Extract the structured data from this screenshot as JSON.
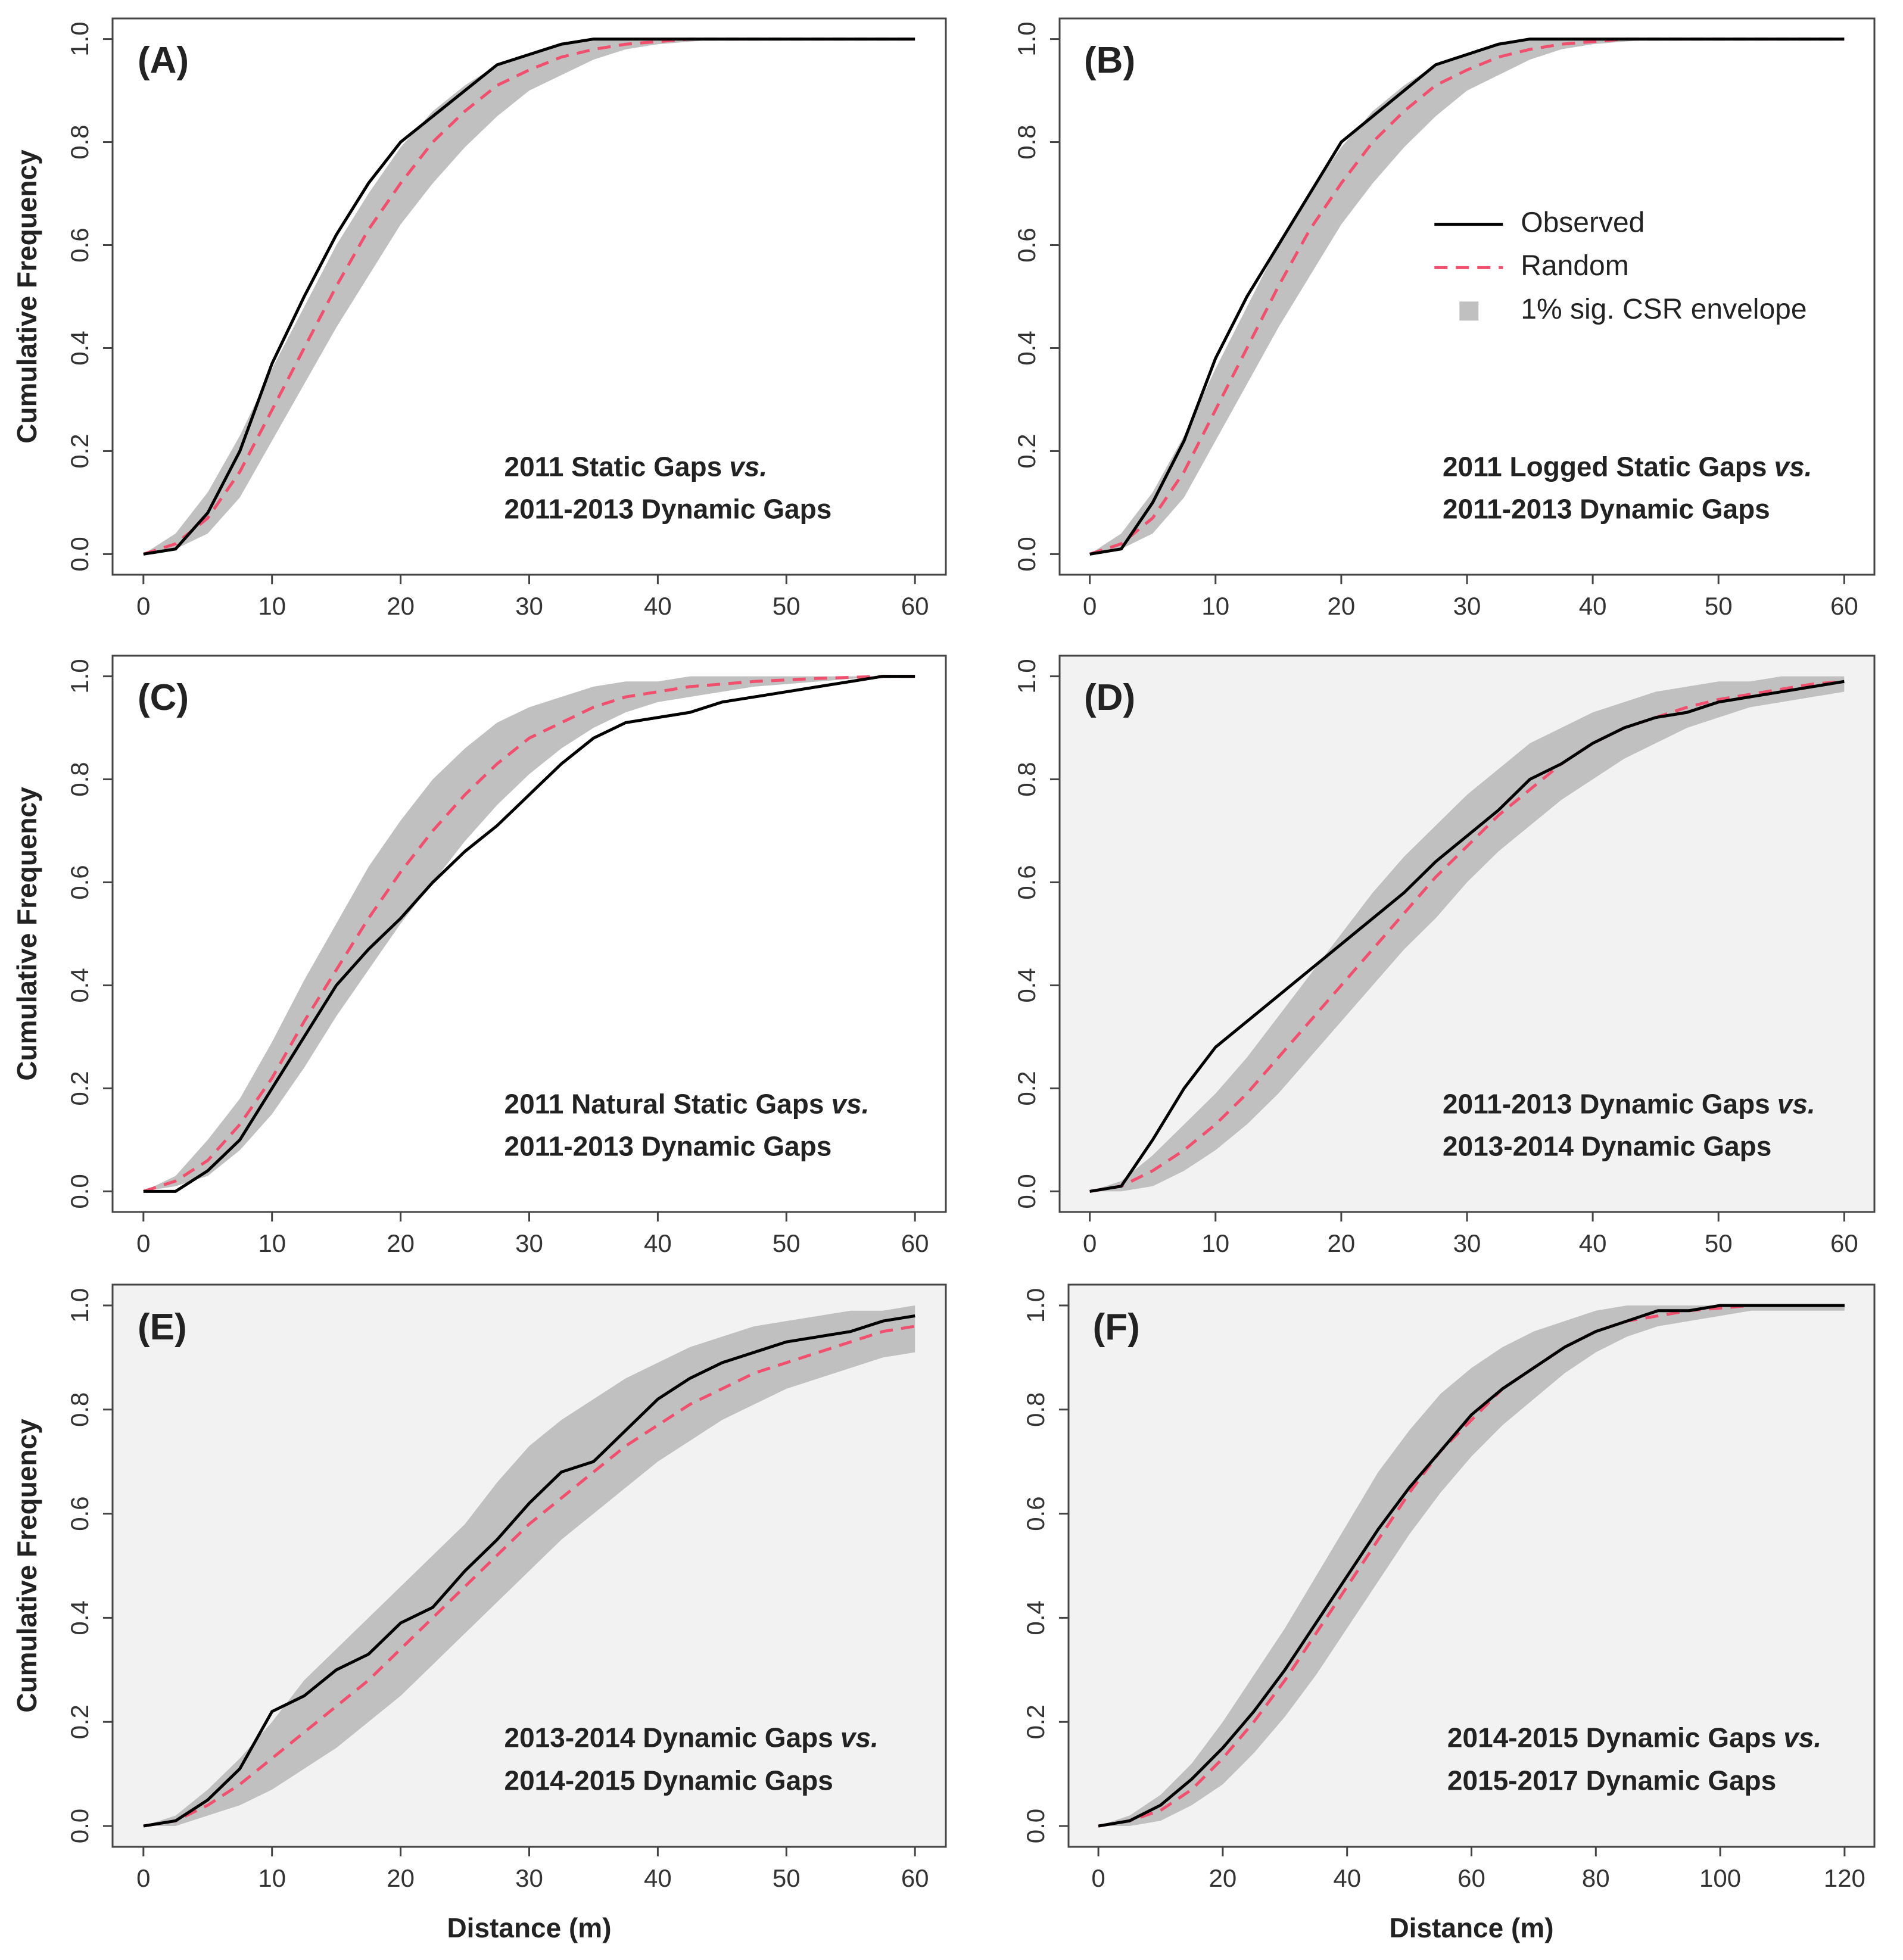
{
  "chart_data": [
    {
      "type": "line",
      "label": "(A)",
      "background": "#ffffff",
      "annotation": [
        [
          "2011 Static Gaps",
          "vs."
        ],
        [
          "2011-2013 Dynamic Gaps"
        ]
      ],
      "ylabel": "Cumulative Frequency",
      "x": [
        0,
        2.5,
        5,
        7.5,
        10,
        12.5,
        15,
        17.5,
        20,
        22.5,
        25,
        27.5,
        30,
        32.5,
        35,
        37.5,
        40,
        42.5,
        45,
        47.5,
        50,
        52.5,
        55,
        57.5,
        60
      ],
      "series": [
        {
          "color": "#000000",
          "style": "solid",
          "values": [
            0,
            0.01,
            0.08,
            0.2,
            0.37,
            0.5,
            0.62,
            0.72,
            0.8,
            0.85,
            0.9,
            0.95,
            0.97,
            0.99,
            1,
            1,
            1,
            1,
            1,
            1,
            1,
            1,
            1,
            1,
            1
          ]
        },
        {
          "color": "#f0506e",
          "style": "dashed",
          "values": [
            0,
            0.02,
            0.07,
            0.16,
            0.28,
            0.4,
            0.52,
            0.63,
            0.72,
            0.8,
            0.86,
            0.91,
            0.94,
            0.965,
            0.98,
            0.99,
            0.995,
            1,
            1,
            1,
            1,
            1,
            1,
            1,
            1
          ]
        },
        {
          "color": "#c0c0c0",
          "lower": [
            0,
            0.01,
            0.04,
            0.11,
            0.22,
            0.33,
            0.44,
            0.54,
            0.64,
            0.72,
            0.79,
            0.85,
            0.9,
            0.93,
            0.96,
            0.98,
            0.99,
            0.995,
            1,
            1,
            1,
            1,
            1,
            1,
            1
          ],
          "upper": [
            0,
            0.04,
            0.12,
            0.23,
            0.36,
            0.48,
            0.6,
            0.7,
            0.79,
            0.86,
            0.91,
            0.95,
            0.97,
            0.99,
            1,
            1,
            1,
            1,
            1,
            1,
            1,
            1,
            1,
            1,
            1
          ]
        }
      ],
      "xlim": [
        0,
        60
      ],
      "ylim": [
        0,
        1
      ],
      "xticks": [
        0,
        10,
        20,
        30,
        40,
        50,
        60
      ],
      "yticks": [
        {
          "value": 0,
          "label": "0.0"
        },
        0.2,
        0.4,
        0.6,
        0.8,
        {
          "value": 1,
          "label": "1.0"
        }
      ]
    },
    {
      "type": "line",
      "label": "(B)",
      "background": "#ffffff",
      "legend": "upper right",
      "annotation": [
        [
          "2011 Logged Static Gaps",
          "vs."
        ],
        [
          "2011-2013 Dynamic Gaps"
        ]
      ],
      "x": [
        0,
        2.5,
        5,
        7.5,
        10,
        12.5,
        15,
        17.5,
        20,
        22.5,
        25,
        27.5,
        30,
        32.5,
        35,
        37.5,
        40,
        42.5,
        45,
        47.5,
        50,
        52.5,
        55,
        57.5,
        60
      ],
      "series": [
        {
          "name": "Observed",
          "color": "#000000",
          "style": "solid",
          "values": [
            0,
            0.01,
            0.1,
            0.22,
            0.38,
            0.5,
            0.6,
            0.7,
            0.8,
            0.85,
            0.9,
            0.95,
            0.97,
            0.99,
            1,
            1,
            1,
            1,
            1,
            1,
            1,
            1,
            1,
            1,
            1
          ]
        },
        {
          "name": "Random",
          "color": "#f0506e",
          "style": "dashed",
          "values": [
            0,
            0.02,
            0.07,
            0.16,
            0.28,
            0.4,
            0.52,
            0.63,
            0.72,
            0.8,
            0.86,
            0.91,
            0.94,
            0.965,
            0.98,
            0.99,
            0.995,
            1,
            1,
            1,
            1,
            1,
            1,
            1,
            1
          ]
        },
        {
          "name": "1% sig. CSR envelope",
          "color": "#c0c0c0",
          "lower": [
            0,
            0.01,
            0.04,
            0.11,
            0.22,
            0.33,
            0.44,
            0.54,
            0.64,
            0.72,
            0.79,
            0.85,
            0.9,
            0.93,
            0.96,
            0.98,
            0.99,
            0.995,
            1,
            1,
            1,
            1,
            1,
            1,
            1
          ],
          "upper": [
            0,
            0.04,
            0.12,
            0.23,
            0.36,
            0.48,
            0.6,
            0.7,
            0.79,
            0.86,
            0.91,
            0.95,
            0.97,
            0.99,
            1,
            1,
            1,
            1,
            1,
            1,
            1,
            1,
            1,
            1,
            1
          ]
        }
      ],
      "xlim": [
        0,
        60
      ],
      "ylim": [
        0,
        1
      ],
      "xticks": [
        0,
        10,
        20,
        30,
        40,
        50,
        60
      ],
      "yticks": [
        {
          "value": 0,
          "label": "0.0"
        },
        0.2,
        0.4,
        0.6,
        0.8,
        {
          "value": 1,
          "label": "1.0"
        }
      ]
    },
    {
      "type": "line",
      "label": "(C)",
      "background": "#ffffff",
      "annotation": [
        [
          "2011 Natural Static Gaps",
          "vs."
        ],
        [
          "2011-2013 Dynamic Gaps"
        ]
      ],
      "ylabel": "Cumulative Frequency",
      "x": [
        0,
        2.5,
        5,
        7.5,
        10,
        12.5,
        15,
        17.5,
        20,
        22.5,
        25,
        27.5,
        30,
        32.5,
        35,
        37.5,
        40,
        42.5,
        45,
        47.5,
        50,
        52.5,
        55,
        57.5,
        60
      ],
      "series": [
        {
          "color": "#000000",
          "style": "solid",
          "values": [
            0,
            0,
            0.04,
            0.1,
            0.2,
            0.3,
            0.4,
            0.47,
            0.53,
            0.6,
            0.66,
            0.71,
            0.77,
            0.83,
            0.88,
            0.91,
            0.92,
            0.93,
            0.95,
            0.96,
            0.97,
            0.98,
            0.99,
            1,
            1
          ]
        },
        {
          "color": "#f0506e",
          "style": "dashed",
          "values": [
            0,
            0.02,
            0.06,
            0.13,
            0.22,
            0.33,
            0.43,
            0.53,
            0.62,
            0.7,
            0.77,
            0.83,
            0.88,
            0.91,
            0.94,
            0.96,
            0.97,
            0.98,
            0.985,
            0.99,
            0.993,
            0.996,
            0.998,
            1,
            1
          ]
        },
        {
          "color": "#c0c0c0",
          "lower": [
            0,
            0.01,
            0.03,
            0.08,
            0.15,
            0.24,
            0.34,
            0.43,
            0.52,
            0.6,
            0.68,
            0.75,
            0.81,
            0.86,
            0.9,
            0.93,
            0.95,
            0.96,
            0.97,
            0.98,
            0.985,
            0.99,
            0.995,
            1,
            1
          ],
          "upper": [
            0,
            0.03,
            0.1,
            0.18,
            0.29,
            0.41,
            0.52,
            0.63,
            0.72,
            0.8,
            0.86,
            0.91,
            0.94,
            0.96,
            0.98,
            0.99,
            0.99,
            1,
            1,
            1,
            1,
            1,
            1,
            1,
            1
          ]
        }
      ],
      "xlim": [
        0,
        60
      ],
      "ylim": [
        0,
        1
      ],
      "xticks": [
        0,
        10,
        20,
        30,
        40,
        50,
        60
      ],
      "yticks": [
        {
          "value": 0,
          "label": "0.0"
        },
        0.2,
        0.4,
        0.6,
        0.8,
        {
          "value": 1,
          "label": "1.0"
        }
      ]
    },
    {
      "type": "line",
      "label": "(D)",
      "background": "#f2f2f2",
      "annotation": [
        [
          "2011-2013 Dynamic Gaps",
          "vs."
        ],
        [
          "2013-2014 Dynamic Gaps"
        ]
      ],
      "x": [
        0,
        2.5,
        5,
        7.5,
        10,
        12.5,
        15,
        17.5,
        20,
        22.5,
        25,
        27.5,
        30,
        32.5,
        35,
        37.5,
        40,
        42.5,
        45,
        47.5,
        50,
        52.5,
        55,
        57.5,
        60
      ],
      "series": [
        {
          "color": "#000000",
          "style": "solid",
          "values": [
            0,
            0.01,
            0.1,
            0.2,
            0.28,
            0.33,
            0.38,
            0.43,
            0.48,
            0.53,
            0.58,
            0.64,
            0.69,
            0.74,
            0.8,
            0.83,
            0.87,
            0.9,
            0.92,
            0.93,
            0.95,
            0.96,
            0.97,
            0.98,
            0.99
          ]
        },
        {
          "color": "#f0506e",
          "style": "dashed",
          "values": [
            0,
            0.01,
            0.04,
            0.08,
            0.13,
            0.19,
            0.26,
            0.33,
            0.4,
            0.47,
            0.54,
            0.61,
            0.67,
            0.73,
            0.78,
            0.83,
            0.87,
            0.9,
            0.92,
            0.94,
            0.955,
            0.965,
            0.975,
            0.985,
            0.99
          ]
        },
        {
          "color": "#c0c0c0",
          "lower": [
            0,
            0,
            0.01,
            0.04,
            0.08,
            0.13,
            0.19,
            0.26,
            0.33,
            0.4,
            0.47,
            0.53,
            0.6,
            0.66,
            0.71,
            0.76,
            0.8,
            0.84,
            0.87,
            0.9,
            0.92,
            0.94,
            0.95,
            0.96,
            0.97
          ],
          "upper": [
            0,
            0.02,
            0.07,
            0.13,
            0.19,
            0.26,
            0.34,
            0.42,
            0.5,
            0.58,
            0.65,
            0.71,
            0.77,
            0.82,
            0.87,
            0.9,
            0.93,
            0.95,
            0.97,
            0.98,
            0.99,
            0.99,
            1,
            1,
            1
          ]
        }
      ],
      "xlim": [
        0,
        60
      ],
      "ylim": [
        0,
        1
      ],
      "xticks": [
        0,
        10,
        20,
        30,
        40,
        50,
        60
      ],
      "yticks": [
        {
          "value": 0,
          "label": "0.0"
        },
        0.2,
        0.4,
        0.6,
        0.8,
        {
          "value": 1,
          "label": "1.0"
        }
      ]
    },
    {
      "type": "line",
      "label": "(E)",
      "background": "#f2f2f2",
      "annotation": [
        [
          "2013-2014 Dynamic Gaps",
          "vs."
        ],
        [
          "2014-2015 Dynamic Gaps"
        ]
      ],
      "ylabel": "Cumulative Frequency",
      "xlabel": "Distance (m)",
      "x": [
        0,
        2.5,
        5,
        7.5,
        10,
        12.5,
        15,
        17.5,
        20,
        22.5,
        25,
        27.5,
        30,
        32.5,
        35,
        37.5,
        40,
        42.5,
        45,
        47.5,
        50,
        52.5,
        55,
        57.5,
        60
      ],
      "series": [
        {
          "color": "#000000",
          "style": "solid",
          "values": [
            0,
            0.01,
            0.05,
            0.11,
            0.22,
            0.25,
            0.3,
            0.33,
            0.39,
            0.42,
            0.49,
            0.55,
            0.62,
            0.68,
            0.7,
            0.76,
            0.82,
            0.86,
            0.89,
            0.91,
            0.93,
            0.94,
            0.95,
            0.97,
            0.98
          ]
        },
        {
          "color": "#f0506e",
          "style": "dashed",
          "values": [
            0,
            0.01,
            0.04,
            0.08,
            0.13,
            0.18,
            0.23,
            0.28,
            0.34,
            0.4,
            0.46,
            0.52,
            0.58,
            0.63,
            0.68,
            0.73,
            0.77,
            0.81,
            0.84,
            0.87,
            0.89,
            0.91,
            0.93,
            0.95,
            0.96
          ]
        },
        {
          "color": "#c0c0c0",
          "lower": [
            0,
            0,
            0.02,
            0.04,
            0.07,
            0.11,
            0.15,
            0.2,
            0.25,
            0.31,
            0.37,
            0.43,
            0.49,
            0.55,
            0.6,
            0.65,
            0.7,
            0.74,
            0.78,
            0.81,
            0.84,
            0.86,
            0.88,
            0.9,
            0.91
          ],
          "upper": [
            0,
            0.02,
            0.07,
            0.13,
            0.2,
            0.28,
            0.34,
            0.4,
            0.46,
            0.52,
            0.58,
            0.66,
            0.73,
            0.78,
            0.82,
            0.86,
            0.89,
            0.92,
            0.94,
            0.96,
            0.97,
            0.98,
            0.99,
            0.99,
            1
          ]
        }
      ],
      "xlim": [
        0,
        60
      ],
      "ylim": [
        0,
        1
      ],
      "xticks": [
        0,
        10,
        20,
        30,
        40,
        50,
        60
      ],
      "yticks": [
        {
          "value": 0,
          "label": "0.0"
        },
        0.2,
        0.4,
        0.6,
        0.8,
        {
          "value": 1,
          "label": "1.0"
        }
      ]
    },
    {
      "type": "line",
      "label": "(F)",
      "background": "#f2f2f2",
      "annotation": [
        [
          "2014-2015 Dynamic Gaps",
          "vs."
        ],
        [
          "2015-2017 Dynamic Gaps"
        ]
      ],
      "xlabel": "Distance (m)",
      "x": [
        0,
        5,
        10,
        15,
        20,
        25,
        30,
        35,
        40,
        45,
        50,
        55,
        60,
        65,
        70,
        75,
        80,
        85,
        90,
        95,
        100,
        105,
        110,
        115,
        120
      ],
      "series": [
        {
          "color": "#000000",
          "style": "solid",
          "values": [
            0,
            0.01,
            0.04,
            0.09,
            0.15,
            0.22,
            0.3,
            0.39,
            0.48,
            0.57,
            0.65,
            0.72,
            0.79,
            0.84,
            0.88,
            0.92,
            0.95,
            0.97,
            0.99,
            0.99,
            1,
            1,
            1,
            1,
            1
          ]
        },
        {
          "color": "#f0506e",
          "style": "dashed",
          "values": [
            0,
            0.01,
            0.03,
            0.07,
            0.13,
            0.2,
            0.28,
            0.37,
            0.46,
            0.55,
            0.64,
            0.72,
            0.78,
            0.84,
            0.88,
            0.92,
            0.95,
            0.97,
            0.98,
            0.99,
            0.995,
            1,
            1,
            1,
            1
          ]
        },
        {
          "color": "#c0c0c0",
          "lower": [
            0,
            0,
            0.01,
            0.04,
            0.08,
            0.14,
            0.21,
            0.29,
            0.38,
            0.47,
            0.56,
            0.64,
            0.71,
            0.77,
            0.82,
            0.87,
            0.91,
            0.94,
            0.96,
            0.97,
            0.98,
            0.99,
            0.99,
            0.99,
            0.99
          ],
          "upper": [
            0,
            0.02,
            0.06,
            0.12,
            0.2,
            0.29,
            0.38,
            0.48,
            0.58,
            0.68,
            0.76,
            0.83,
            0.88,
            0.92,
            0.95,
            0.97,
            0.99,
            1,
            1,
            1,
            1,
            1,
            1,
            1,
            1
          ]
        }
      ],
      "xlim": [
        0,
        120
      ],
      "ylim": [
        0,
        1
      ],
      "xticks": [
        0,
        20,
        40,
        60,
        80,
        100,
        120
      ],
      "yticks": [
        {
          "value": 0,
          "label": "0.0"
        },
        0.2,
        0.4,
        0.6,
        0.8,
        {
          "value": 1,
          "label": "1.0"
        }
      ]
    }
  ]
}
